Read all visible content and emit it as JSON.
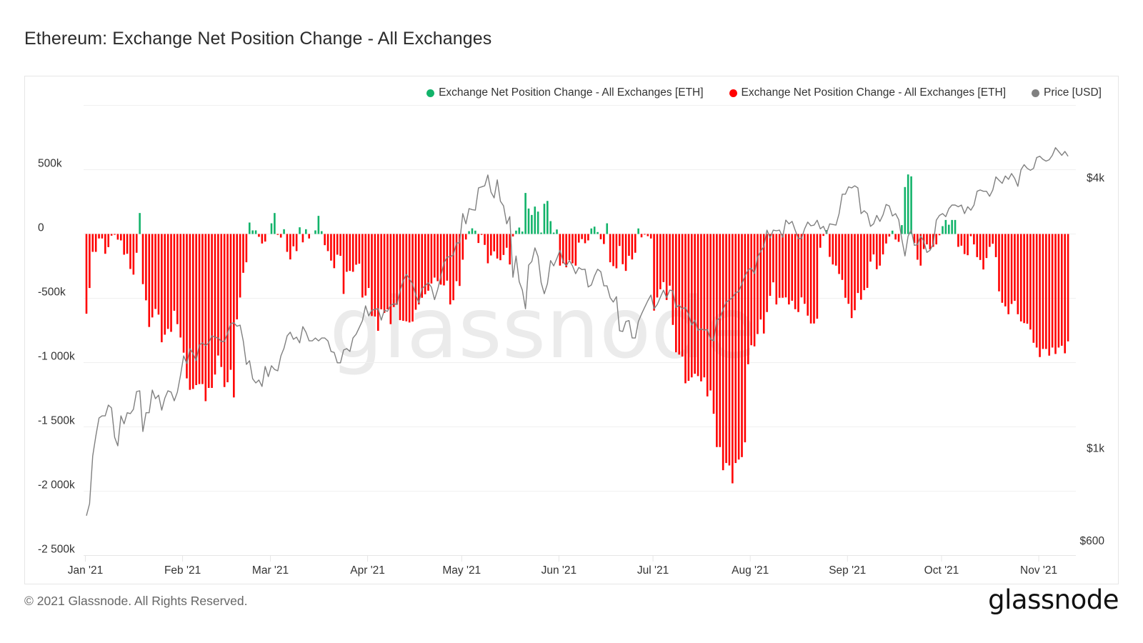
{
  "title": "Ethereum: Exchange Net Position Change - All Exchanges",
  "footer": "© 2021 Glassnode. All Rights Reserved.",
  "logo": "glassnode",
  "watermark": "glassnode",
  "colors": {
    "positive": "#12b36a",
    "negative": "#ff0000",
    "price": "#808080",
    "grid": "#f0f0f0",
    "watermark": "#ebebeb"
  },
  "legend": [
    {
      "label": "Exchange Net Position Change - All Exchanges [ETH]",
      "color": "#12b36a"
    },
    {
      "label": "Exchange Net Position Change - All Exchanges [ETH]",
      "color": "#ff0000"
    },
    {
      "label": "Price [USD]",
      "color": "#808080"
    }
  ],
  "chart_data": {
    "type": "bar+line",
    "title": "Ethereum: Exchange Net Position Change - All Exchanges",
    "legend_position": "top-right",
    "grid": true,
    "x": {
      "start": "2021-01-01",
      "end": "2021-11-10",
      "frequency": "daily"
    },
    "x_tick_labels": [
      "Jan '21",
      "Feb '21",
      "Mar '21",
      "Apr '21",
      "May '21",
      "Jun '21",
      "Jul '21",
      "Aug '21",
      "Sep '21",
      "Oct '21",
      "Nov '21"
    ],
    "y_left": {
      "unit": "ETH (thousands)",
      "range": [
        -2500,
        1000
      ],
      "ticks": [
        500,
        0,
        -500,
        -1000,
        -1500,
        -2000,
        -2500
      ],
      "tick_labels": [
        "500k",
        "0",
        "-500k",
        "-1 000k",
        "-1 500k",
        "-2 000k",
        "-2 500k"
      ]
    },
    "y_right": {
      "scale": "log",
      "range": [
        600,
        5200
      ],
      "ticks": [
        4000,
        1000,
        600
      ],
      "tick_labels": [
        "$4k",
        "$1k",
        "$600"
      ]
    },
    "series": [
      {
        "name": "Exchange Net Position Change - All Exchanges [ETH]",
        "type": "bar",
        "unit": "thousand ETH",
        "positive_color": "#12b36a",
        "negative_color": "#ff0000",
        "values": [
          -620,
          -420,
          -139,
          -139,
          -35,
          -35,
          -154,
          -102,
          -13,
          -6,
          -44,
          -50,
          -161,
          -154,
          -272,
          -316,
          -146,
          163,
          -390,
          -516,
          -723,
          -649,
          -583,
          -627,
          -842,
          -783,
          -738,
          -761,
          -597,
          -701,
          -805,
          -923,
          -1123,
          -1212,
          -1205,
          -1175,
          -1167,
          -1167,
          -1300,
          -1197,
          -1197,
          -1093,
          -945,
          -1034,
          -1190,
          -1153,
          -1056,
          -1271,
          -664,
          -494,
          -302,
          -220,
          89,
          28,
          28,
          -22,
          -74,
          -59,
          0,
          83,
          163,
          -7,
          -28,
          37,
          -139,
          -198,
          -96,
          -133,
          52,
          -65,
          37,
          -35,
          0,
          28,
          141,
          22,
          -87,
          -133,
          -207,
          -266,
          -161,
          -170,
          -466,
          -294,
          -287,
          -294,
          -239,
          -231,
          -494,
          -479,
          -420,
          -638,
          -642,
          -753,
          -586,
          -614,
          -586,
          -701,
          -568,
          -549,
          -670,
          -675,
          -679,
          -688,
          -681,
          -589,
          -548,
          -496,
          -469,
          -441,
          -385,
          -339,
          -367,
          -394,
          -400,
          -363,
          -548,
          -515,
          -367,
          -404,
          -200,
          -43,
          22,
          44,
          26,
          -70,
          -7,
          -85,
          -228,
          -167,
          -135,
          -191,
          -204,
          -163,
          -107,
          -237,
          -19,
          26,
          50,
          19,
          319,
          198,
          148,
          213,
          174,
          11,
          235,
          257,
          100,
          11,
          35,
          -246,
          -228,
          -259,
          -204,
          -228,
          -246,
          -67,
          -40,
          -72,
          -50,
          43,
          57,
          15,
          -41,
          -78,
          83,
          -220,
          -250,
          -267,
          -93,
          -235,
          -287,
          -170,
          -198,
          -146,
          43,
          -26,
          -5,
          -17,
          -35,
          -596,
          -494,
          -430,
          -374,
          -513,
          -402,
          -707,
          -920,
          -938,
          -953,
          -1161,
          -1142,
          -1115,
          -1087,
          -1105,
          -1146,
          -1115,
          -1263,
          -1217,
          -1398,
          -1657,
          -1657,
          -1837,
          -1781,
          -1800,
          -1939,
          -1781,
          -1754,
          -1735,
          -1620,
          -1013,
          -865,
          -874,
          -778,
          -665,
          -774,
          -607,
          -481,
          -376,
          -548,
          -496,
          -496,
          -493,
          -548,
          -519,
          -585,
          -607,
          -493,
          -543,
          -635,
          -696,
          -696,
          -659,
          -107,
          -15,
          30,
          -178,
          -237,
          -246,
          -311,
          -357,
          -496,
          -543,
          -654,
          -593,
          -459,
          -511,
          -437,
          -419,
          -215,
          -159,
          -274,
          -246,
          -159,
          -74,
          -20,
          26,
          -43,
          -61,
          69,
          365,
          463,
          448,
          -70,
          -200,
          -246,
          -117,
          -81,
          -119,
          -100,
          -81,
          -10,
          61,
          109,
          72,
          109,
          109,
          -100,
          -91,
          -156,
          -165,
          -17,
          -81,
          -180,
          -202,
          -276,
          -187,
          -100,
          -76,
          -180,
          -446,
          -535,
          -563,
          -624,
          -544,
          -520,
          -624,
          -680,
          -693,
          -698,
          -743,
          -846,
          -883,
          -957,
          -894,
          -894,
          -946,
          -883,
          -933,
          -883,
          -869,
          -928,
          -835
        ]
      },
      {
        "name": "Price [USD]",
        "type": "line",
        "axis": "right",
        "color": "#808080",
        "values": [
          708,
          753,
          962,
          1066,
          1168,
          1181,
          1181,
          1248,
          1230,
          1058,
          1013,
          1181,
          1134,
          1200,
          1195,
          1222,
          1338,
          1343,
          1090,
          1200,
          1200,
          1348,
          1290,
          1313,
          1216,
          1294,
          1343,
          1334,
          1276,
          1334,
          1455,
          1606,
          1544,
          1667,
          1625,
          1567,
          1698,
          1717,
          1692,
          1717,
          1780,
          1768,
          1760,
          1729,
          1729,
          1803,
          1894,
          1903,
          1870,
          1880,
          1735,
          1538,
          1567,
          1428,
          1398,
          1419,
          1373,
          1521,
          1444,
          1527,
          1498,
          1488,
          1606,
          1672,
          1780,
          1813,
          1749,
          1768,
          1717,
          1866,
          1813,
          1735,
          1735,
          1760,
          1735,
          1760,
          1760,
          1735,
          1643,
          1635,
          1550,
          1550,
          1655,
          1667,
          1643,
          1760,
          1795,
          1858,
          1923,
          2076,
          1972,
          2030,
          2038,
          2046,
          1929,
          2030,
          2018,
          2083,
          2097,
          2090,
          2242,
          2360,
          2440,
          2385,
          2320,
          2194,
          2108,
          2268,
          2300,
          2336,
          2285,
          2143,
          2257,
          2416,
          2586,
          2664,
          2672,
          2693,
          2866,
          2866,
          3330,
          3160,
          3417,
          3400,
          3390,
          3800,
          3820,
          3840,
          4060,
          3720,
          3610,
          3960,
          3550,
          3465,
          3160,
          3280,
          2403,
          2680,
          2350,
          2250,
          2045,
          2558,
          2605,
          2795,
          2672,
          2340,
          2208,
          2325,
          2618,
          2548,
          2647,
          2760,
          2605,
          2548,
          2618,
          2548,
          2448,
          2527,
          2500,
          2505,
          2286,
          2310,
          2420,
          2505,
          2473,
          2300,
          2300,
          2165,
          2116,
          2176,
          1827,
          1820,
          1916,
          1925,
          1760,
          1760,
          1916,
          1990,
          2060,
          2130,
          2194,
          2045,
          2090,
          2170,
          2250,
          2165,
          2250,
          2242,
          2060,
          2083,
          2045,
          2060,
          1985,
          1880,
          1929,
          1832,
          1845,
          1832,
          1840,
          1749,
          1735,
          1929,
          1950,
          2038,
          2116,
          2138,
          2165,
          2220,
          2233,
          2325,
          2420,
          2496,
          2520,
          2448,
          2664,
          2745,
          2812,
          3060,
          2940,
          3060,
          3050,
          3060,
          2950,
          3221,
          3160,
          3200,
          3060,
          2930,
          2930,
          3080,
          3190,
          3130,
          3140,
          3220,
          3080,
          3120,
          3010,
          3160,
          3150,
          3140,
          3330,
          3680,
          3680,
          3820,
          3800,
          3840,
          3800,
          3330,
          3380,
          3330,
          3120,
          3160,
          3300,
          3200,
          3310,
          3490,
          3465,
          3290,
          3330,
          3230,
          2920,
          2680,
          2970,
          3060,
          2830,
          2840,
          2970,
          2890,
          2730,
          2760,
          2846,
          3221,
          3300,
          3330,
          3280,
          3417,
          3480,
          3480,
          3450,
          3480,
          3330,
          3450,
          3390,
          3480,
          3735,
          3760,
          3735,
          3735,
          3640,
          3760,
          4020,
          3950,
          3890,
          4040,
          3970,
          4090,
          3990,
          3830,
          4170,
          4280,
          4200,
          4160,
          4200,
          4440,
          4470,
          4400,
          4360,
          4390,
          4490,
          4670,
          4580,
          4490,
          4580,
          4470
        ]
      }
    ]
  }
}
